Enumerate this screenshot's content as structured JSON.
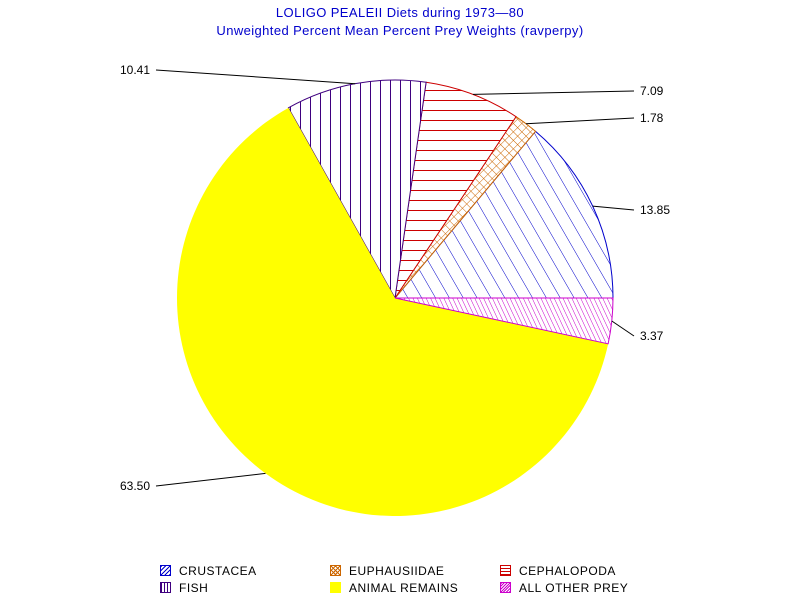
{
  "title_line1": "LOLIGO  PEALEII Diets during  1973—80",
  "title_line2": "Unweighted  Percent  Mean  Percent  Prey   Weights  (ravperpy)",
  "colors": {
    "title": "#0000cc",
    "crustacea": "#0000cc",
    "euphausiidae": "#cc6600",
    "cephalopoda": "#cc0000",
    "fish": "#3f007f",
    "animal_remains": "#ffff00",
    "all_other_prey": "#cc00cc"
  },
  "chart_data": {
    "type": "pie",
    "start": "3 o'clock",
    "direction": "counterclockwise",
    "slices": [
      {
        "category": "CRUSTACEA",
        "value": 13.85,
        "label": "13.85",
        "color": "#0000cc",
        "pattern": "diagonal"
      },
      {
        "category": "EUPHAUSIIDAE",
        "value": 1.78,
        "label": "1.78",
        "color": "#cc6600",
        "pattern": "crosshatch"
      },
      {
        "category": "CEPHALOPODA",
        "value": 7.09,
        "label": "7.09",
        "color": "#cc0000",
        "pattern": "horizontal"
      },
      {
        "category": "FISH",
        "value": 10.41,
        "label": "10.41",
        "color": "#3f007f",
        "pattern": "vertical"
      },
      {
        "category": "ANIMAL REMAINS",
        "value": 63.5,
        "label": "63.50",
        "color": "#ffff00",
        "pattern": "solid"
      },
      {
        "category": "ALL OTHER PREY",
        "value": 3.37,
        "label": "3.37",
        "color": "#cc00cc",
        "pattern": "dense-diagonal"
      }
    ]
  },
  "legend": [
    {
      "label": "CRUSTACEA",
      "color": "#0000cc"
    },
    {
      "label": "EUPHAUSIIDAE",
      "color": "#cc6600"
    },
    {
      "label": "CEPHALOPODA",
      "color": "#cc0000"
    },
    {
      "label": "FISH",
      "color": "#3f007f"
    },
    {
      "label": "ANIMAL  REMAINS",
      "color": "#ffff00"
    },
    {
      "label": "ALL  OTHER  PREY",
      "color": "#cc00cc"
    }
  ]
}
